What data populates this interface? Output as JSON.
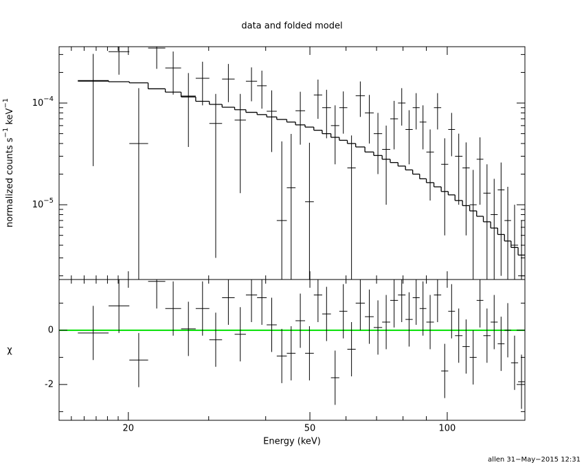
{
  "chart_data": {
    "type": "spectrum",
    "title": "data and folded model",
    "xlabel": "Energy (keV)",
    "xscale": "log",
    "xlim": [
      14.1,
      148
    ],
    "xticks": [
      20,
      50,
      100
    ],
    "xminor_ticks": [
      15,
      16,
      17,
      18,
      19,
      30,
      40,
      60,
      70,
      80,
      90
    ],
    "bin_edges": [
      15.5,
      18.1,
      20.1,
      22.1,
      24.1,
      26.1,
      28.1,
      30.1,
      32.1,
      34.2,
      36.2,
      38.3,
      40.2,
      42.3,
      44.5,
      46.5,
      48.8,
      51.0,
      53.2,
      55.6,
      58.0,
      60.4,
      63,
      66,
      69,
      72,
      75,
      78,
      81,
      84,
      87,
      90,
      93.5,
      97,
      100.5,
      104,
      108,
      112,
      116,
      120,
      124.5,
      129,
      133.5,
      138,
      143,
      148
    ],
    "upper": {
      "ylabel": [
        {
          "text": "normalized counts s"
        },
        {
          "sup": "−1"
        },
        {
          "text": " keV"
        },
        {
          "sup": "−1"
        }
      ],
      "yscale": "log",
      "ylim": [
        1.84e-06,
        0.000358
      ],
      "yticks": [
        {
          "value": 0.0001,
          "label": "10",
          "exponent": "−4"
        },
        {
          "value": 1e-05,
          "label": "10",
          "exponent": "−5"
        }
      ],
      "yminor_ticks": [
        2e-06,
        3e-06,
        4e-06,
        5e-06,
        6e-06,
        7e-06,
        8e-06,
        9e-06,
        2e-05,
        3e-05,
        4e-05,
        5e-05,
        6e-05,
        7e-05,
        8e-05,
        9e-05,
        0.0002,
        0.0003
      ],
      "data": {
        "color": "#000000",
        "values": [
          0.000164,
          0.00032,
          4e-05,
          0.000347,
          0.000221,
          0.000117,
          0.000175,
          6.3e-05,
          0.000172,
          6.8e-05,
          0.000164,
          0.000148,
          8.3e-05,
          7e-06,
          1.47e-05,
          8.4e-05,
          1.07e-05,
          0.00012,
          9e-05,
          6e-05,
          9e-05,
          2.3e-05,
          0.000118,
          8e-05,
          5e-05,
          3.5e-05,
          7e-05,
          0.0001,
          5.5e-05,
          9e-05,
          6.5e-05,
          3.3e-05,
          9e-05,
          2.5e-05,
          5.5e-05,
          3e-05,
          2.3e-05,
          1e-05,
          2.8e-05,
          1.3e-05,
          8e-06,
          1.4e-05,
          7e-06,
          4e-06,
          2e-06
        ],
        "errors": [
          0.00014,
          0.00013,
          0.0001,
          0.00013,
          0.0001,
          8e-05,
          8e-05,
          6e-05,
          7e-05,
          5.5e-05,
          6e-05,
          6e-05,
          5e-05,
          3.5e-05,
          3.5e-05,
          4.5e-05,
          3e-05,
          5e-05,
          4.5e-05,
          3.5e-05,
          4e-05,
          2.5e-05,
          4.5e-05,
          4e-05,
          3e-05,
          2.5e-05,
          3.5e-05,
          4e-05,
          3e-05,
          3.5e-05,
          3e-05,
          2.2e-05,
          3.5e-05,
          2e-05,
          2.5e-05,
          2e-05,
          1.8e-05,
          1.2e-05,
          1.8e-05,
          1.2e-05,
          1e-05,
          1.2e-05,
          8e-06,
          6e-06,
          5e-06
        ]
      },
      "model": {
        "color": "#000000",
        "values": [
          0.000166,
          0.000162,
          0.000158,
          0.000138,
          0.000128,
          0.000115,
          0.000104,
          9.7e-05,
          9.1e-05,
          8.6e-05,
          8.1e-05,
          7.7e-05,
          7.3e-05,
          6.9e-05,
          6.5e-05,
          6.1e-05,
          5.8e-05,
          5.4e-05,
          5e-05,
          4.6e-05,
          4.3e-05,
          4e-05,
          3.7e-05,
          3.3e-05,
          3.05e-05,
          2.8e-05,
          2.6e-05,
          2.4e-05,
          2.2e-05,
          2e-05,
          1.8e-05,
          1.65e-05,
          1.5e-05,
          1.35e-05,
          1.25e-05,
          1.1e-05,
          9.8e-06,
          8.7e-06,
          7.7e-06,
          6.8e-06,
          5.9e-06,
          5.1e-06,
          4.4e-06,
          3.8e-06,
          3.2e-06
        ]
      }
    },
    "lower": {
      "ylabel": "χ",
      "ylim": [
        -3.32,
        1.87
      ],
      "yticks": [
        -2,
        0
      ],
      "yminor_ticks": [
        -3,
        -1,
        1
      ],
      "residuals": {
        "color": "#000000",
        "values": [
          -0.1,
          0.9,
          -1.1,
          1.8,
          0.8,
          0.05,
          0.8,
          -0.35,
          1.2,
          -0.15,
          1.3,
          1.2,
          0.2,
          -0.95,
          -0.85,
          0.35,
          -0.85,
          1.3,
          0.6,
          -1.75,
          0.7,
          -0.7,
          1.0,
          0.5,
          0.1,
          0.3,
          1.1,
          1.3,
          0.4,
          1.2,
          0.8,
          0.3,
          1.3,
          -1.5,
          0.7,
          -0.2,
          -0.6,
          -1.0,
          1.1,
          -0.2,
          0.3,
          -0.5,
          0.0,
          -1.2,
          -1.9
        ],
        "errors": [
          1,
          1,
          1,
          1,
          1,
          1,
          1,
          1,
          1,
          1,
          1,
          1,
          1,
          1,
          1,
          1,
          1,
          1,
          1,
          1,
          1,
          1,
          1,
          1,
          1,
          1,
          1,
          1,
          1,
          1,
          1,
          1,
          1,
          1,
          1,
          1,
          1,
          1,
          1,
          1,
          1,
          1,
          1,
          1,
          1
        ]
      },
      "reference": {
        "value": 0,
        "color": "#00e000"
      }
    }
  },
  "footer": "allen 31−May−2015 12:31"
}
